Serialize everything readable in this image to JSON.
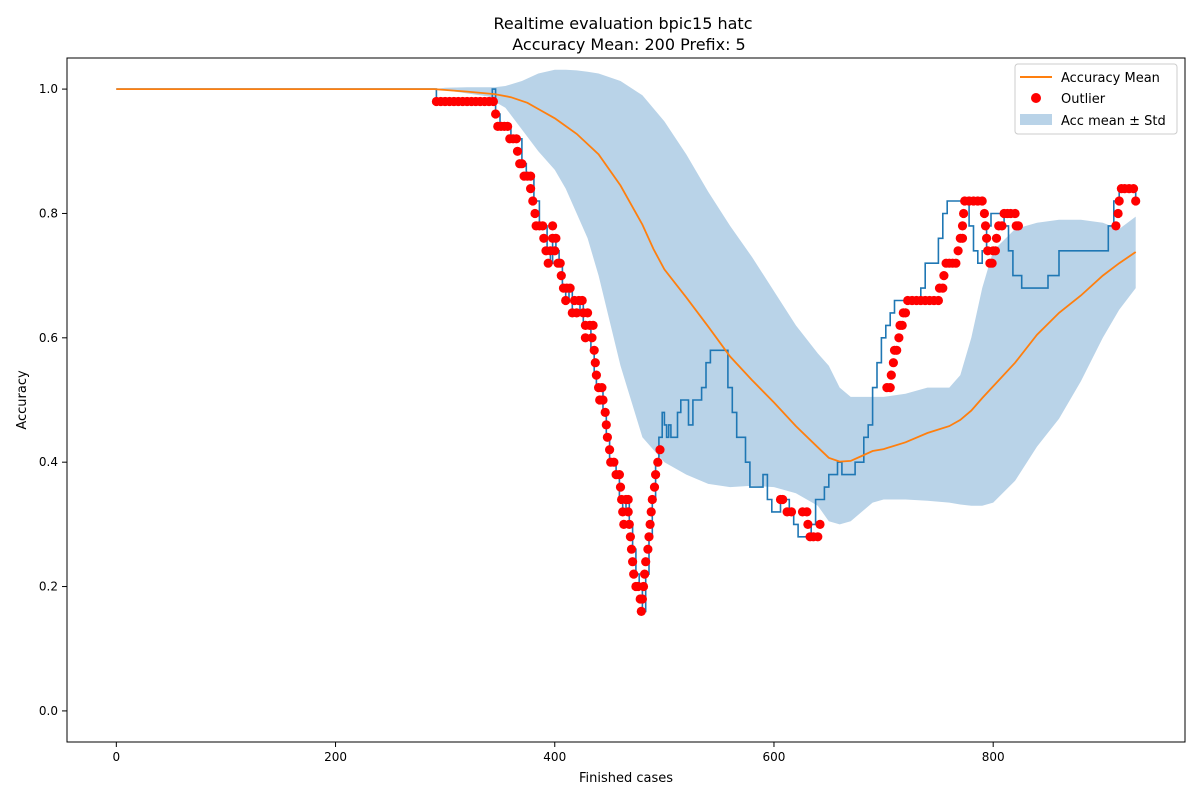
{
  "chart_data": {
    "type": "line",
    "title": "Realtime evaluation bpic15 hatc",
    "subtitle": "Accuracy Mean: 200 Prefix: 5",
    "xlabel": "Finished cases",
    "ylabel": "Accuracy",
    "xlim": [
      -45,
      975
    ],
    "ylim": [
      -0.05,
      1.05
    ],
    "xticks": [
      0,
      200,
      400,
      600,
      800
    ],
    "yticks": [
      0.0,
      0.2,
      0.4,
      0.6,
      0.8,
      1.0
    ],
    "xtick_labels": [
      "0",
      "200",
      "400",
      "600",
      "800"
    ],
    "ytick_labels": [
      "0.0",
      "0.2",
      "0.4",
      "0.6",
      "0.8",
      "1.0"
    ],
    "grid": false,
    "legend_position": "top-right",
    "colors": {
      "accuracy": "#1f77b4",
      "mean": "#ff7f0e",
      "outlier": "#ff0000",
      "band": "#b9d3e8"
    },
    "series": [
      {
        "key": "accuracy",
        "kind": "step-line",
        "x": [
          0,
          290,
          292,
          296,
          343,
          346,
          350,
          356,
          360,
          365,
          370,
          374,
          378,
          381,
          386,
          390,
          393,
          396,
          398,
          401,
          404,
          407,
          410,
          413,
          416,
          420,
          423,
          426,
          430,
          433,
          436,
          438,
          441,
          444,
          447,
          450,
          453,
          456,
          459,
          462,
          465,
          468,
          471,
          474,
          477,
          480,
          483,
          486,
          489,
          492,
          495,
          498,
          500,
          502,
          504,
          506,
          508,
          512,
          515,
          518,
          522,
          526,
          530,
          534,
          538,
          542,
          546,
          550,
          554,
          558,
          562,
          566,
          570,
          574,
          578,
          582,
          586,
          590,
          594,
          598,
          602,
          606,
          610,
          614,
          618,
          622,
          626,
          630,
          634,
          638,
          642,
          646,
          650,
          654,
          658,
          662,
          666,
          670,
          674,
          678,
          682,
          686,
          690,
          694,
          698,
          702,
          706,
          710,
          714,
          718,
          722,
          726,
          730,
          734,
          738,
          742,
          746,
          750,
          754,
          758,
          762,
          766,
          770,
          774,
          778,
          782,
          786,
          790,
          794,
          798,
          802,
          806,
          810,
          814,
          818,
          822,
          826,
          830,
          840,
          850,
          860,
          870,
          875,
          880,
          890,
          900,
          905,
          910,
          915,
          920,
          925,
          930
        ],
        "values": [
          1.0,
          1.0,
          0.98,
          0.98,
          1.0,
          0.96,
          0.94,
          0.94,
          0.92,
          0.92,
          0.88,
          0.86,
          0.86,
          0.82,
          0.78,
          0.78,
          0.74,
          0.72,
          0.76,
          0.74,
          0.72,
          0.68,
          0.66,
          0.68,
          0.64,
          0.64,
          0.66,
          0.62,
          0.62,
          0.58,
          0.54,
          0.52,
          0.52,
          0.48,
          0.44,
          0.4,
          0.4,
          0.38,
          0.34,
          0.32,
          0.34,
          0.3,
          0.26,
          0.22,
          0.2,
          0.16,
          0.22,
          0.28,
          0.34,
          0.4,
          0.44,
          0.48,
          0.46,
          0.44,
          0.46,
          0.44,
          0.44,
          0.48,
          0.5,
          0.5,
          0.46,
          0.5,
          0.5,
          0.52,
          0.56,
          0.58,
          0.58,
          0.58,
          0.58,
          0.52,
          0.48,
          0.44,
          0.44,
          0.4,
          0.36,
          0.36,
          0.36,
          0.38,
          0.34,
          0.32,
          0.32,
          0.34,
          0.34,
          0.32,
          0.3,
          0.28,
          0.28,
          0.28,
          0.3,
          0.34,
          0.34,
          0.36,
          0.38,
          0.38,
          0.4,
          0.38,
          0.38,
          0.38,
          0.4,
          0.4,
          0.44,
          0.46,
          0.52,
          0.56,
          0.6,
          0.62,
          0.64,
          0.66,
          0.66,
          0.66,
          0.66,
          0.66,
          0.66,
          0.68,
          0.72,
          0.72,
          0.72,
          0.76,
          0.8,
          0.82,
          0.82,
          0.82,
          0.82,
          0.82,
          0.78,
          0.74,
          0.72,
          0.74,
          0.78,
          0.8,
          0.8,
          0.8,
          0.78,
          0.74,
          0.7,
          0.7,
          0.68,
          0.68,
          0.68,
          0.7,
          0.74,
          0.74,
          0.74,
          0.74,
          0.74,
          0.74,
          0.78,
          0.82,
          0.84,
          0.84,
          0.84,
          0.82
        ]
      },
      {
        "key": "mean",
        "name": "Accuracy Mean",
        "kind": "line",
        "x": [
          0,
          100,
          200,
          290,
          320,
          345,
          360,
          375,
          385,
          400,
          420,
          440,
          460,
          480,
          490,
          500,
          520,
          540,
          560,
          580,
          600,
          620,
          640,
          650,
          660,
          670,
          680,
          690,
          700,
          720,
          740,
          760,
          770,
          780,
          790,
          800,
          820,
          840,
          860,
          880,
          900,
          915,
          930
        ],
        "values": [
          1.0,
          1.0,
          1.0,
          1.0,
          0.996,
          0.992,
          0.987,
          0.978,
          0.968,
          0.953,
          0.928,
          0.895,
          0.845,
          0.782,
          0.743,
          0.71,
          0.665,
          0.618,
          0.57,
          0.532,
          0.496,
          0.458,
          0.424,
          0.407,
          0.401,
          0.402,
          0.41,
          0.418,
          0.421,
          0.432,
          0.447,
          0.458,
          0.468,
          0.483,
          0.503,
          0.522,
          0.56,
          0.605,
          0.64,
          0.668,
          0.7,
          0.72,
          0.738
        ]
      },
      {
        "key": "outliers",
        "name": "Outlier",
        "kind": "scatter",
        "points": [
          [
            292,
            0.98
          ],
          [
            296,
            0.98
          ],
          [
            300,
            0.98
          ],
          [
            304,
            0.98
          ],
          [
            308,
            0.98
          ],
          [
            312,
            0.98
          ],
          [
            316,
            0.98
          ],
          [
            320,
            0.98
          ],
          [
            324,
            0.98
          ],
          [
            328,
            0.98
          ],
          [
            332,
            0.98
          ],
          [
            336,
            0.98
          ],
          [
            340,
            0.98
          ],
          [
            344,
            0.98
          ],
          [
            346,
            0.96
          ],
          [
            348,
            0.94
          ],
          [
            351,
            0.94
          ],
          [
            354,
            0.94
          ],
          [
            357,
            0.94
          ],
          [
            359,
            0.92
          ],
          [
            362,
            0.92
          ],
          [
            365,
            0.92
          ],
          [
            366,
            0.9
          ],
          [
            368,
            0.88
          ],
          [
            370,
            0.88
          ],
          [
            372,
            0.86
          ],
          [
            375,
            0.86
          ],
          [
            378,
            0.86
          ],
          [
            378,
            0.84
          ],
          [
            380,
            0.82
          ],
          [
            382,
            0.8
          ],
          [
            383,
            0.78
          ],
          [
            386,
            0.78
          ],
          [
            389,
            0.78
          ],
          [
            390,
            0.76
          ],
          [
            392,
            0.74
          ],
          [
            394,
            0.72
          ],
          [
            396,
            0.74
          ],
          [
            398,
            0.76
          ],
          [
            398,
            0.78
          ],
          [
            400,
            0.74
          ],
          [
            401,
            0.76
          ],
          [
            403,
            0.72
          ],
          [
            405,
            0.72
          ],
          [
            406,
            0.7
          ],
          [
            408,
            0.68
          ],
          [
            410,
            0.66
          ],
          [
            411,
            0.68
          ],
          [
            414,
            0.68
          ],
          [
            416,
            0.64
          ],
          [
            418,
            0.66
          ],
          [
            420,
            0.64
          ],
          [
            422,
            0.66
          ],
          [
            425,
            0.66
          ],
          [
            426,
            0.64
          ],
          [
            428,
            0.62
          ],
          [
            428,
            0.6
          ],
          [
            430,
            0.64
          ],
          [
            432,
            0.62
          ],
          [
            434,
            0.6
          ],
          [
            435,
            0.62
          ],
          [
            436,
            0.58
          ],
          [
            437,
            0.56
          ],
          [
            438,
            0.54
          ],
          [
            440,
            0.52
          ],
          [
            441,
            0.5
          ],
          [
            443,
            0.52
          ],
          [
            444,
            0.5
          ],
          [
            446,
            0.48
          ],
          [
            447,
            0.46
          ],
          [
            448,
            0.44
          ],
          [
            450,
            0.42
          ],
          [
            451,
            0.4
          ],
          [
            454,
            0.4
          ],
          [
            456,
            0.38
          ],
          [
            459,
            0.38
          ],
          [
            460,
            0.36
          ],
          [
            461,
            0.34
          ],
          [
            462,
            0.32
          ],
          [
            463,
            0.3
          ],
          [
            465,
            0.34
          ],
          [
            467,
            0.32
          ],
          [
            467,
            0.34
          ],
          [
            468,
            0.3
          ],
          [
            469,
            0.28
          ],
          [
            470,
            0.26
          ],
          [
            471,
            0.24
          ],
          [
            472,
            0.22
          ],
          [
            474,
            0.2
          ],
          [
            476,
            0.2
          ],
          [
            478,
            0.18
          ],
          [
            479,
            0.16
          ],
          [
            480,
            0.18
          ],
          [
            481,
            0.2
          ],
          [
            482,
            0.22
          ],
          [
            483,
            0.24
          ],
          [
            485,
            0.26
          ],
          [
            486,
            0.28
          ],
          [
            487,
            0.3
          ],
          [
            488,
            0.32
          ],
          [
            489,
            0.34
          ],
          [
            491,
            0.36
          ],
          [
            492,
            0.38
          ],
          [
            494,
            0.4
          ],
          [
            496,
            0.42
          ],
          [
            606,
            0.34
          ],
          [
            608,
            0.34
          ],
          [
            612,
            0.32
          ],
          [
            616,
            0.32
          ],
          [
            626,
            0.32
          ],
          [
            630,
            0.32
          ],
          [
            631,
            0.3
          ],
          [
            633,
            0.28
          ],
          [
            636,
            0.28
          ],
          [
            640,
            0.28
          ],
          [
            642,
            0.3
          ],
          [
            703,
            0.52
          ],
          [
            706,
            0.52
          ],
          [
            707,
            0.54
          ],
          [
            709,
            0.56
          ],
          [
            710,
            0.58
          ],
          [
            712,
            0.58
          ],
          [
            714,
            0.6
          ],
          [
            715,
            0.62
          ],
          [
            717,
            0.62
          ],
          [
            718,
            0.64
          ],
          [
            720,
            0.64
          ],
          [
            722,
            0.66
          ],
          [
            726,
            0.66
          ],
          [
            730,
            0.66
          ],
          [
            734,
            0.66
          ],
          [
            738,
            0.66
          ],
          [
            742,
            0.66
          ],
          [
            746,
            0.66
          ],
          [
            750,
            0.66
          ],
          [
            751,
            0.68
          ],
          [
            754,
            0.68
          ],
          [
            755,
            0.7
          ],
          [
            757,
            0.72
          ],
          [
            760,
            0.72
          ],
          [
            763,
            0.72
          ],
          [
            766,
            0.72
          ],
          [
            768,
            0.74
          ],
          [
            770,
            0.76
          ],
          [
            772,
            0.76
          ],
          [
            772,
            0.78
          ],
          [
            773,
            0.8
          ],
          [
            774,
            0.82
          ],
          [
            778,
            0.82
          ],
          [
            782,
            0.82
          ],
          [
            786,
            0.82
          ],
          [
            790,
            0.82
          ],
          [
            792,
            0.8
          ],
          [
            793,
            0.78
          ],
          [
            794,
            0.76
          ],
          [
            795,
            0.74
          ],
          [
            797,
            0.72
          ],
          [
            799,
            0.72
          ],
          [
            800,
            0.74
          ],
          [
            802,
            0.74
          ],
          [
            803,
            0.76
          ],
          [
            805,
            0.78
          ],
          [
            808,
            0.78
          ],
          [
            810,
            0.8
          ],
          [
            813,
            0.8
          ],
          [
            816,
            0.8
          ],
          [
            820,
            0.8
          ],
          [
            821,
            0.78
          ],
          [
            823,
            0.78
          ],
          [
            912,
            0.78
          ],
          [
            914,
            0.8
          ],
          [
            915,
            0.82
          ],
          [
            917,
            0.84
          ],
          [
            920,
            0.84
          ],
          [
            924,
            0.84
          ],
          [
            928,
            0.84
          ],
          [
            930,
            0.82
          ]
        ]
      },
      {
        "key": "band",
        "name": "Acc mean ± Std",
        "kind": "band",
        "x": [
          290,
          300,
          320,
          340,
          345,
          355,
          370,
          385,
          400,
          410,
          420,
          430,
          440,
          460,
          480,
          500,
          520,
          540,
          560,
          580,
          600,
          620,
          640,
          650,
          660,
          670,
          680,
          690,
          700,
          720,
          740,
          760,
          770,
          780,
          790,
          800,
          820,
          840,
          860,
          880,
          900,
          915,
          930
        ],
        "upper": [
          1.0,
          1.002,
          1.003,
          1.003,
          1.003,
          1.005,
          1.013,
          1.025,
          1.031,
          1.031,
          1.03,
          1.028,
          1.025,
          1.013,
          0.99,
          0.948,
          0.895,
          0.835,
          0.78,
          0.73,
          0.675,
          0.62,
          0.575,
          0.555,
          0.52,
          0.505,
          0.505,
          0.505,
          0.505,
          0.51,
          0.52,
          0.52,
          0.54,
          0.6,
          0.68,
          0.74,
          0.775,
          0.785,
          0.79,
          0.79,
          0.785,
          0.775,
          0.795
        ],
        "lower": [
          1.0,
          0.998,
          0.993,
          0.988,
          0.98,
          0.97,
          0.935,
          0.9,
          0.87,
          0.84,
          0.8,
          0.76,
          0.7,
          0.555,
          0.44,
          0.4,
          0.38,
          0.365,
          0.36,
          0.362,
          0.36,
          0.35,
          0.33,
          0.305,
          0.3,
          0.305,
          0.32,
          0.335,
          0.34,
          0.34,
          0.338,
          0.335,
          0.332,
          0.33,
          0.33,
          0.335,
          0.37,
          0.425,
          0.47,
          0.53,
          0.6,
          0.645,
          0.68
        ]
      }
    ]
  }
}
